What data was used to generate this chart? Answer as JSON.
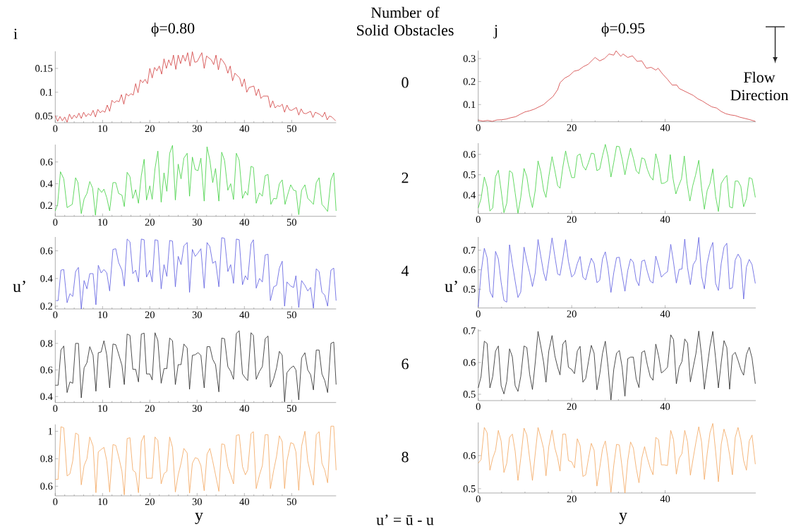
{
  "chart_data": [
    {
      "type": "line",
      "title": "ϕ=0.80",
      "annotations": [
        "i",
        "Number of Solid Obstacles",
        "0"
      ],
      "xlim": [
        0,
        59.4
      ],
      "xticks": [
        0,
        10,
        20,
        30,
        40,
        50
      ],
      "ylim": [
        0.036,
        0.186
      ],
      "yticks": [
        0.05,
        0.1,
        0.15
      ],
      "series": [
        {
          "color": "#d03a3a",
          "x": [
            0,
            0.5,
            1,
            1.5,
            2,
            2.5,
            3,
            3.5,
            4,
            4.5,
            5,
            5.5,
            6,
            6.5,
            7,
            7.5,
            8,
            8.5,
            9,
            9.5,
            10,
            10.5,
            11,
            11.5,
            12,
            12.5,
            13,
            13.5,
            14,
            14.5,
            15,
            15.5,
            16,
            16.5,
            17,
            17.5,
            18,
            18.5,
            19,
            19.5,
            20,
            20.5,
            21,
            21.5,
            22,
            22.5,
            23,
            23.5,
            24,
            24.5,
            25,
            25.5,
            26,
            26.5,
            27,
            27.5,
            28,
            28.5,
            29,
            29.5,
            30,
            31,
            31.5,
            32,
            33,
            33.5,
            34,
            34.5,
            35,
            35.5,
            36,
            36.5,
            37,
            37.5,
            38,
            39,
            39.5,
            40,
            40.5,
            41,
            42,
            42.5,
            43,
            43.5,
            44,
            45,
            45.5,
            46,
            46.5,
            47,
            47.5,
            48,
            48.5,
            49,
            49.5,
            50,
            51,
            51.5,
            52,
            52.5,
            53,
            54,
            54.5,
            55,
            56,
            56.5,
            57,
            57.5,
            58,
            58.5,
            59.3
          ],
          "values": [
            0.051,
            0.039,
            0.049,
            0.04,
            0.048,
            0.037,
            0.054,
            0.044,
            0.052,
            0.046,
            0.056,
            0.045,
            0.058,
            0.049,
            0.055,
            0.051,
            0.062,
            0.048,
            0.064,
            0.057,
            0.061,
            0.058,
            0.073,
            0.06,
            0.083,
            0.078,
            0.082,
            0.08,
            0.095,
            0.075,
            0.097,
            0.092,
            0.097,
            0.094,
            0.118,
            0.099,
            0.126,
            0.12,
            0.127,
            0.118,
            0.15,
            0.13,
            0.152,
            0.145,
            0.155,
            0.138,
            0.17,
            0.15,
            0.168,
            0.156,
            0.178,
            0.148,
            0.178,
            0.16,
            0.178,
            0.165,
            0.183,
            0.155,
            0.185,
            0.163,
            0.164,
            0.183,
            0.15,
            0.176,
            0.168,
            0.158,
            0.178,
            0.147,
            0.171,
            0.165,
            0.157,
            0.14,
            0.155,
            0.124,
            0.14,
            0.13,
            0.112,
            0.128,
            0.1,
            0.11,
            0.113,
            0.093,
            0.107,
            0.087,
            0.092,
            0.092,
            0.068,
            0.082,
            0.067,
            0.072,
            0.07,
            0.075,
            0.058,
            0.073,
            0.063,
            0.062,
            0.068,
            0.052,
            0.065,
            0.056,
            0.055,
            0.06,
            0.047,
            0.058,
            0.053,
            0.048,
            0.058,
            0.042,
            0.05,
            0.048,
            0.04
          ]
        }
      ]
    },
    {
      "type": "line",
      "title": "ϕ=0.95",
      "annotations": [
        "j",
        "Flow Direction"
      ],
      "xlim": [
        0,
        59.4
      ],
      "xticks": [
        0,
        20,
        40
      ],
      "ylim": [
        0.025,
        0.335
      ],
      "yticks": [
        0.1,
        0.2,
        0.3
      ],
      "series": [
        {
          "color": "#d03a3a",
          "x": [
            0,
            1,
            2,
            3,
            4,
            5,
            6,
            7,
            8,
            9,
            10,
            11,
            12,
            13,
            14,
            15,
            16,
            17,
            17.5,
            18.5,
            19.5,
            20.5,
            21.5,
            22.5,
            23.5,
            24.5,
            25,
            26,
            27,
            28,
            29,
            29.5,
            30.5,
            31,
            32,
            33,
            34,
            35,
            36,
            37,
            38,
            38.5,
            39.5,
            40.5,
            41.5,
            42.5,
            43,
            44,
            45,
            46,
            47,
            48,
            49,
            50,
            51,
            52,
            53,
            54,
            55,
            56,
            57,
            58,
            59.3
          ],
          "values": [
            0.032,
            0.028,
            0.031,
            0.027,
            0.033,
            0.034,
            0.037,
            0.043,
            0.047,
            0.058,
            0.068,
            0.073,
            0.08,
            0.09,
            0.1,
            0.118,
            0.135,
            0.165,
            0.195,
            0.215,
            0.226,
            0.245,
            0.25,
            0.265,
            0.275,
            0.295,
            0.305,
            0.29,
            0.3,
            0.32,
            0.315,
            0.334,
            0.31,
            0.32,
            0.305,
            0.312,
            0.288,
            0.29,
            0.258,
            0.262,
            0.25,
            0.258,
            0.232,
            0.21,
            0.185,
            0.185,
            0.17,
            0.16,
            0.15,
            0.14,
            0.125,
            0.115,
            0.102,
            0.09,
            0.085,
            0.07,
            0.06,
            0.055,
            0.052,
            0.045,
            0.04,
            0.035,
            0.027
          ]
        }
      ]
    },
    {
      "type": "line",
      "ylabel": "u’",
      "annotations": [
        "2"
      ],
      "xlim": [
        0,
        59.4
      ],
      "xticks": [
        0,
        10,
        20,
        30,
        40,
        50
      ],
      "ylim": [
        0.1,
        0.76
      ],
      "yticks": [
        0.2,
        0.4,
        0.6
      ],
      "series": [
        {
          "color": "#3ecf3e",
          "x": [
            0,
            0.5,
            1.1,
            1.8,
            2.5,
            3.6,
            4.3,
            4.8,
            5.5,
            6.1,
            6.7,
            7.3,
            7.9,
            8.5,
            9.1,
            9.8,
            10.3,
            10.9,
            11.5,
            12.2,
            12.8,
            13.4,
            14.1,
            14.6,
            15.2,
            15.8,
            16.4,
            17,
            17.6,
            18.2,
            18.8,
            19.3,
            20,
            20.5,
            21.1,
            21.7,
            22.4,
            23,
            23.6,
            24.2,
            24.8,
            25.4,
            26,
            26.6,
            27.2,
            27.9,
            28.4,
            29,
            29.6,
            30.2,
            30.8,
            31.5,
            32.1,
            32.7,
            33.3,
            33.9,
            34.6,
            35.2,
            35.8,
            36.5,
            37.1,
            37.7,
            38.3,
            38.9,
            39.6,
            40.2,
            40.7,
            41.4,
            41.9,
            42.5,
            43.2,
            43.8,
            44.4,
            45,
            45.6,
            46.2,
            46.8,
            47.4,
            48,
            48.6,
            49.3,
            49.8,
            50.4,
            50.9,
            51.5,
            52.1,
            52.8,
            53.4,
            54,
            54.6,
            55.2,
            55.8,
            56.4,
            57,
            57.6,
            58.3,
            58.9,
            59.4
          ],
          "values": [
            0.15,
            0.21,
            0.51,
            0.445,
            0.18,
            0.21,
            0.455,
            0.41,
            0.125,
            0.26,
            0.31,
            0.42,
            0.36,
            0.11,
            0.36,
            0.32,
            0.35,
            0.27,
            0.15,
            0.41,
            0.41,
            0.31,
            0.295,
            0.19,
            0.505,
            0.465,
            0.265,
            0.345,
            0.22,
            0.475,
            0.625,
            0.25,
            0.38,
            0.257,
            0.54,
            0.7,
            0.23,
            0.5,
            0.33,
            0.68,
            0.753,
            0.25,
            0.58,
            0.445,
            0.635,
            0.68,
            0.285,
            0.645,
            0.53,
            0.52,
            0.635,
            0.24,
            0.74,
            0.615,
            0.41,
            0.54,
            0.24,
            0.69,
            0.615,
            0.34,
            0.4,
            0.255,
            0.68,
            0.615,
            0.265,
            0.33,
            0.295,
            0.56,
            0.55,
            0.22,
            0.315,
            0.285,
            0.475,
            0.485,
            0.21,
            0.265,
            0.26,
            0.4,
            0.435,
            0.21,
            0.32,
            0.39,
            0.34,
            0.335,
            0.115,
            0.34,
            0.39,
            0.265,
            0.24,
            0.21,
            0.41,
            0.455,
            0.21,
            0.18,
            0.145,
            0.435,
            0.5,
            0.15
          ]
        }
      ]
    },
    {
      "type": "line",
      "ylabel": "u’",
      "xlim": [
        0,
        59.4
      ],
      "xticks": [
        0,
        20,
        40
      ],
      "ylim": [
        0.31,
        0.655
      ],
      "yticks": [
        0.4,
        0.5,
        0.6
      ],
      "series": [
        {
          "color": "#3ecf3e",
          "x": [
            0,
            0.6,
            1.3,
            1.9,
            2.5,
            3.1,
            3.7,
            4.3,
            4.9,
            5.5,
            6.1,
            6.7,
            7.3,
            7.9,
            8.5,
            9.1,
            9.8,
            10.4,
            11,
            11.6,
            12.2,
            12.8,
            13.4,
            14,
            14.5,
            15.1,
            15.8,
            16.4,
            17,
            17.5,
            18.1,
            18.7,
            19.3,
            20,
            20.6,
            21.2,
            21.8,
            22.4,
            23,
            23.6,
            24.2,
            24.8,
            25.4,
            26,
            26.6,
            27.2,
            27.8,
            28.4,
            29,
            29.6,
            30.2,
            30.8,
            31.4,
            32,
            32.6,
            33.2,
            33.8,
            34.4,
            35,
            35.6,
            36.2,
            36.8,
            37.4,
            38,
            38.6,
            39.2,
            39.8,
            40.5,
            41.1,
            41.7,
            42.3,
            42.9,
            43.5,
            44.1,
            44.7,
            45.3,
            45.9,
            46.5,
            47.2,
            47.8,
            48.4,
            49,
            49.6,
            50.2,
            50.8,
            51.4,
            52,
            52.6,
            53.2,
            53.8,
            54.4,
            55,
            55.6,
            56.2,
            56.8,
            57.4,
            58,
            58.6,
            59.3
          ],
          "values": [
            0.337,
            0.383,
            0.489,
            0.44,
            0.322,
            0.337,
            0.491,
            0.522,
            0.423,
            0.314,
            0.36,
            0.52,
            0.509,
            0.411,
            0.311,
            0.389,
            0.531,
            0.491,
            0.4,
            0.339,
            0.423,
            0.568,
            0.514,
            0.423,
            0.389,
            0.491,
            0.589,
            0.52,
            0.446,
            0.434,
            0.537,
            0.617,
            0.549,
            0.486,
            0.486,
            0.594,
            0.602,
            0.543,
            0.523,
            0.56,
            0.606,
            0.603,
            0.52,
            0.528,
            0.594,
            0.649,
            0.589,
            0.489,
            0.56,
            0.64,
            0.638,
            0.577,
            0.5,
            0.571,
            0.631,
            0.581,
            0.52,
            0.505,
            0.583,
            0.577,
            0.526,
            0.491,
            0.474,
            0.603,
            0.549,
            0.457,
            0.459,
            0.469,
            0.599,
            0.48,
            0.406,
            0.446,
            0.48,
            0.592,
            0.457,
            0.371,
            0.446,
            0.497,
            0.571,
            0.434,
            0.331,
            0.423,
            0.457,
            0.529,
            0.394,
            0.32,
            0.457,
            0.48,
            0.497,
            0.343,
            0.337,
            0.469,
            0.469,
            0.443,
            0.343,
            0.383,
            0.486,
            0.48,
            0.389
          ]
        }
      ]
    },
    {
      "type": "line",
      "annotations": [
        "4"
      ],
      "xlim": [
        0,
        59.4
      ],
      "xticks": [
        0,
        10,
        20,
        30,
        40,
        50
      ],
      "ylim": [
        0.18,
        0.7
      ],
      "yticks": [
        0.2,
        0.4,
        0.6
      ],
      "series": [
        {
          "color": "#5a5ae0",
          "x": [
            0.15,
            0.6,
            1.2,
            1.8,
            2.5,
            3.1,
            3.7,
            4.3,
            4.9,
            5.5,
            6.1,
            6.7,
            7.3,
            8,
            8.6,
            9.1,
            9.7,
            10.3,
            10.9,
            11.5,
            12.2,
            12.8,
            13.4,
            14.1,
            14.6,
            15.2,
            15.8,
            16.4,
            17,
            17.6,
            18.2,
            18.8,
            19.3,
            20,
            20.5,
            21.1,
            21.7,
            22.4,
            23,
            23.6,
            24.2,
            24.8,
            25.4,
            26,
            26.6,
            27.2,
            27.9,
            28.4,
            29,
            29.6,
            30.2,
            30.8,
            31.5,
            32.1,
            32.7,
            33.3,
            33.9,
            34.6,
            35.2,
            35.8,
            36.5,
            37.1,
            37.7,
            38.3,
            38.9,
            39.6,
            40.2,
            40.7,
            41.4,
            41.9,
            42.5,
            43.2,
            43.8,
            44.4,
            45,
            45.5,
            46.2,
            46.8,
            47.4,
            48,
            48.5,
            49,
            49.8,
            50.4,
            50.9,
            51.5,
            52.1,
            52.8,
            53.4,
            54,
            54.6,
            55.2,
            55.8,
            56.4,
            57,
            57.6,
            58.3,
            58.9,
            59.4
          ],
          "values": [
            0.24,
            0.24,
            0.46,
            0.465,
            0.225,
            0.29,
            0.27,
            0.45,
            0.48,
            0.18,
            0.385,
            0.325,
            0.435,
            0.435,
            0.21,
            0.495,
            0.44,
            0.465,
            0.44,
            0.31,
            0.61,
            0.615,
            0.515,
            0.46,
            0.345,
            0.685,
            0.665,
            0.435,
            0.46,
            0.375,
            0.685,
            0.68,
            0.41,
            0.46,
            0.375,
            0.68,
            0.675,
            0.325,
            0.5,
            0.415,
            0.675,
            0.67,
            0.34,
            0.56,
            0.5,
            0.635,
            0.66,
            0.3,
            0.61,
            0.56,
            0.585,
            0.615,
            0.33,
            0.66,
            0.63,
            0.51,
            0.525,
            0.34,
            0.695,
            0.69,
            0.45,
            0.5,
            0.365,
            0.685,
            0.68,
            0.355,
            0.42,
            0.39,
            0.65,
            0.68,
            0.33,
            0.4,
            0.375,
            0.57,
            0.575,
            0.24,
            0.34,
            0.35,
            0.475,
            0.525,
            0.2,
            0.375,
            0.345,
            0.335,
            0.42,
            0.19,
            0.385,
            0.35,
            0.31,
            0.335,
            0.185,
            0.47,
            0.45,
            0.3,
            0.28,
            0.2,
            0.46,
            0.475,
            0.24
          ]
        }
      ]
    },
    {
      "type": "line",
      "xlim": [
        0,
        59.4
      ],
      "xticks": [
        0,
        20,
        40
      ],
      "ylim": [
        0.404,
        0.768
      ],
      "yticks": [
        0.5,
        0.6,
        0.7
      ],
      "series": [
        {
          "color": "#5a5ae0",
          "x": [
            0,
            0.6,
            1.3,
            1.9,
            2.5,
            3.1,
            3.7,
            4.3,
            4.9,
            5.5,
            6.1,
            6.7,
            7.3,
            7.9,
            8.5,
            9.1,
            9.8,
            10.4,
            11,
            11.6,
            12.2,
            12.8,
            13.4,
            14,
            14.5,
            15.1,
            15.8,
            16.4,
            17,
            17.5,
            18.1,
            18.7,
            19.3,
            20,
            20.6,
            21.2,
            21.8,
            22.4,
            23,
            23.6,
            24.2,
            24.8,
            25.4,
            26,
            26.6,
            27.2,
            27.8,
            28.4,
            29,
            29.6,
            30.2,
            30.8,
            31.4,
            32,
            32.6,
            33.2,
            33.8,
            34.4,
            35,
            35.6,
            36.2,
            36.8,
            37.4,
            38,
            38.6,
            39.2,
            39.8,
            40.5,
            41.2,
            41.8,
            42.4,
            43,
            43.6,
            44.2,
            44.8,
            45.4,
            46,
            46.6,
            47.2,
            47.8,
            48.4,
            49,
            49.6,
            50.2,
            50.8,
            51.4,
            52,
            52.6,
            53.2,
            53.8,
            54.4,
            55,
            55.6,
            56.2,
            56.8,
            57.4,
            58,
            58.6,
            59.3
          ],
          "values": [
            0.41,
            0.584,
            0.71,
            0.662,
            0.49,
            0.458,
            0.694,
            0.656,
            0.536,
            0.443,
            0.434,
            0.728,
            0.632,
            0.542,
            0.458,
            0.486,
            0.716,
            0.644,
            0.584,
            0.514,
            0.584,
            0.755,
            0.668,
            0.584,
            0.544,
            0.644,
            0.763,
            0.668,
            0.578,
            0.572,
            0.656,
            0.754,
            0.644,
            0.563,
            0.578,
            0.632,
            0.668,
            0.562,
            0.548,
            0.608,
            0.659,
            0.632,
            0.534,
            0.546,
            0.656,
            0.692,
            0.608,
            0.484,
            0.584,
            0.662,
            0.664,
            0.572,
            0.49,
            0.596,
            0.656,
            0.638,
            0.548,
            0.518,
            0.644,
            0.65,
            0.59,
            0.542,
            0.532,
            0.67,
            0.62,
            0.562,
            0.578,
            0.59,
            0.73,
            0.638,
            0.532,
            0.602,
            0.604,
            0.757,
            0.61,
            0.524,
            0.626,
            0.65,
            0.766,
            0.566,
            0.502,
            0.632,
            0.7,
            0.74,
            0.53,
            0.494,
            0.632,
            0.716,
            0.736,
            0.502,
            0.508,
            0.65,
            0.68,
            0.656,
            0.45,
            0.614,
            0.653,
            0.626,
            0.53
          ]
        }
      ]
    },
    {
      "type": "line",
      "annotations": [
        "6"
      ],
      "xlim": [
        0,
        59.4
      ],
      "xticks": [
        0,
        10,
        20,
        30,
        40,
        50
      ],
      "ylim": [
        0.355,
        0.9
      ],
      "yticks": [
        0.4,
        0.6,
        0.8
      ],
      "series": [
        {
          "color": "#222222",
          "x": [
            0,
            0.6,
            1.2,
            1.8,
            2.5,
            3.1,
            3.7,
            4.3,
            4.9,
            5.5,
            6.1,
            6.7,
            7.3,
            8,
            8.6,
            9.1,
            9.7,
            10.3,
            10.9,
            11.5,
            12.2,
            12.8,
            13.4,
            14.1,
            14.6,
            15.2,
            15.8,
            16.4,
            17,
            17.6,
            18.2,
            18.8,
            19.3,
            20,
            20.5,
            21.1,
            21.7,
            22.4,
            23,
            23.6,
            24.2,
            24.8,
            25.4,
            26,
            26.6,
            27.2,
            27.9,
            28.4,
            29,
            29.6,
            30.2,
            30.8,
            31.5,
            32.1,
            32.7,
            33.3,
            33.9,
            34.6,
            35.2,
            35.8,
            36.5,
            37.1,
            37.7,
            38.3,
            38.9,
            39.6,
            40.2,
            40.7,
            41.4,
            41.9,
            42.5,
            43.2,
            43.8,
            44.4,
            45,
            45.5,
            46.2,
            46.8,
            47.4,
            48,
            48.5,
            49,
            49.8,
            50.4,
            50.9,
            51.5,
            52.1,
            52.8,
            53.4,
            54,
            54.6,
            55.2,
            55.8,
            56.4,
            57,
            57.6,
            58.3,
            58.9,
            59.4
          ],
          "values": [
            0.485,
            0.485,
            0.75,
            0.78,
            0.43,
            0.51,
            0.5,
            0.8,
            0.8,
            0.39,
            0.615,
            0.655,
            0.775,
            0.71,
            0.44,
            0.73,
            0.735,
            0.82,
            0.71,
            0.465,
            0.795,
            0.79,
            0.72,
            0.635,
            0.49,
            0.87,
            0.86,
            0.605,
            0.605,
            0.51,
            0.87,
            0.877,
            0.57,
            0.57,
            0.525,
            0.88,
            0.82,
            0.5,
            0.61,
            0.61,
            0.84,
            0.82,
            0.49,
            0.64,
            0.64,
            0.795,
            0.765,
            0.455,
            0.71,
            0.715,
            0.73,
            0.71,
            0.465,
            0.775,
            0.775,
            0.68,
            0.64,
            0.435,
            0.84,
            0.835,
            0.625,
            0.59,
            0.53,
            0.875,
            0.895,
            0.57,
            0.54,
            0.52,
            0.88,
            0.86,
            0.53,
            0.59,
            0.625,
            0.835,
            0.855,
            0.47,
            0.535,
            0.615,
            0.74,
            0.71,
            0.36,
            0.58,
            0.615,
            0.63,
            0.6,
            0.375,
            0.69,
            0.73,
            0.6,
            0.565,
            0.45,
            0.75,
            0.75,
            0.57,
            0.52,
            0.43,
            0.8,
            0.81,
            0.49
          ]
        }
      ]
    },
    {
      "type": "line",
      "xlim": [
        0,
        59.4
      ],
      "xticks": [
        0,
        20,
        40
      ],
      "ylim": [
        0.48,
        0.705
      ],
      "yticks": [
        0.5,
        0.6,
        0.7
      ],
      "series": [
        {
          "color": "#222222",
          "x": [
            0,
            0.6,
            1.3,
            1.9,
            2.5,
            3.1,
            3.7,
            4.3,
            4.9,
            5.5,
            6.1,
            6.7,
            7.3,
            7.9,
            8.5,
            9.1,
            9.8,
            10.4,
            11,
            11.6,
            12.2,
            12.8,
            13.4,
            14,
            14.5,
            15.1,
            15.8,
            16.4,
            17,
            17.5,
            18.1,
            18.7,
            19.3,
            20,
            20.6,
            21.2,
            21.8,
            22.4,
            23,
            23.6,
            24.2,
            24.8,
            25.4,
            26,
            26.6,
            27.2,
            27.8,
            28.4,
            29,
            29.6,
            30.2,
            30.8,
            31.4,
            32,
            32.6,
            33.2,
            33.8,
            34.4,
            35,
            35.6,
            36.2,
            36.8,
            37.4,
            38,
            38.6,
            39.2,
            39.8,
            40.5,
            41.2,
            41.8,
            42.4,
            43,
            43.6,
            44.2,
            44.8,
            45.4,
            46,
            46.6,
            47.2,
            47.8,
            48.4,
            49,
            49.6,
            50.2,
            50.8,
            51.4,
            52,
            52.6,
            53.2,
            53.8,
            54.4,
            55,
            55.6,
            56.2,
            56.8,
            57.4,
            58,
            58.6,
            59.3
          ],
          "values": [
            0.52,
            0.556,
            0.667,
            0.66,
            0.52,
            0.556,
            0.636,
            0.652,
            0.527,
            0.501,
            0.541,
            0.643,
            0.618,
            0.527,
            0.509,
            0.556,
            0.652,
            0.647,
            0.563,
            0.515,
            0.6,
            0.698,
            0.651,
            0.6,
            0.538,
            0.636,
            0.685,
            0.621,
            0.585,
            0.561,
            0.658,
            0.67,
            0.585,
            0.578,
            0.565,
            0.636,
            0.651,
            0.538,
            0.55,
            0.604,
            0.654,
            0.629,
            0.514,
            0.563,
            0.629,
            0.667,
            0.585,
            0.482,
            0.578,
            0.629,
            0.638,
            0.585,
            0.494,
            0.612,
            0.617,
            0.617,
            0.549,
            0.521,
            0.632,
            0.637,
            0.592,
            0.556,
            0.544,
            0.658,
            0.621,
            0.567,
            0.574,
            0.585,
            0.687,
            0.672,
            0.533,
            0.585,
            0.603,
            0.674,
            0.661,
            0.539,
            0.585,
            0.629,
            0.699,
            0.621,
            0.516,
            0.585,
            0.651,
            0.698,
            0.614,
            0.52,
            0.6,
            0.669,
            0.647,
            0.516,
            0.623,
            0.632,
            0.607,
            0.578,
            0.56,
            0.625,
            0.648,
            0.614,
            0.533
          ]
        }
      ]
    },
    {
      "type": "line",
      "xlabel": "y",
      "annotations": [
        "8",
        "u’ = ū - u"
      ],
      "xlim": [
        0,
        59.4
      ],
      "xticks": [
        0,
        10,
        20,
        30,
        40,
        50
      ],
      "ylim": [
        0.53,
        1.05
      ],
      "yticks": [
        0.6,
        0.8,
        1
      ],
      "series": [
        {
          "color": "#f2a55c",
          "x": [
            0,
            0.6,
            1.2,
            1.8,
            2.5,
            3.1,
            3.7,
            4.3,
            4.9,
            5.5,
            6.1,
            6.7,
            7.3,
            8,
            8.6,
            9.1,
            9.7,
            10.3,
            10.9,
            11.5,
            12.2,
            12.8,
            13.4,
            14.1,
            14.6,
            15.2,
            15.8,
            16.4,
            17,
            17.6,
            18.2,
            18.8,
            19.3,
            20,
            20.5,
            21.1,
            21.7,
            22.4,
            23,
            23.6,
            24.2,
            24.8,
            25.4,
            26,
            26.6,
            27.2,
            27.9,
            28.4,
            29,
            29.6,
            30.2,
            30.8,
            31.5,
            32.1,
            32.7,
            33.3,
            33.9,
            34.6,
            35.2,
            35.8,
            36.5,
            37.1,
            37.7,
            38.3,
            38.9,
            39.6,
            40.2,
            40.7,
            41.4,
            41.9,
            42.5,
            43.2,
            43.8,
            44.4,
            45,
            45.5,
            46.2,
            46.8,
            47.4,
            48,
            48.5,
            49,
            49.8,
            50.4,
            50.9,
            51.5,
            52.1,
            52.8,
            53.4,
            54,
            54.6,
            55.2,
            55.8,
            56.4,
            57,
            57.6,
            58.3,
            58.9,
            59.4
          ],
          "values": [
            0.65,
            0.65,
            1.033,
            1.025,
            0.675,
            0.69,
            0.785,
            0.987,
            0.975,
            0.61,
            0.75,
            0.8,
            0.958,
            0.892,
            0.553,
            0.85,
            0.867,
            0.883,
            0.783,
            0.558,
            0.903,
            0.897,
            0.817,
            0.708,
            0.537,
            0.947,
            0.953,
            0.717,
            0.7,
            0.553,
            0.925,
            0.97,
            0.658,
            0.658,
            0.658,
            0.958,
            0.933,
            0.617,
            0.692,
            0.708,
            0.958,
            0.883,
            0.558,
            0.683,
            0.767,
            0.875,
            0.842,
            0.55,
            0.767,
            0.808,
            0.8,
            0.75,
            0.567,
            0.833,
            0.875,
            0.783,
            0.683,
            0.563,
            0.908,
            0.903,
            0.742,
            0.683,
            0.617,
            0.97,
            0.975,
            0.742,
            0.683,
            0.717,
            0.983,
            0.997,
            0.583,
            0.683,
            0.75,
            0.975,
            0.975,
            0.583,
            0.717,
            0.817,
            0.967,
            0.925,
            0.583,
            0.783,
            0.917,
            0.908,
            0.85,
            0.57,
            0.892,
            1.0,
            0.783,
            0.692,
            0.608,
            0.975,
            0.997,
            0.767,
            0.717,
            0.625,
            1.037,
            1.037,
            0.717
          ]
        }
      ]
    },
    {
      "type": "line",
      "xlabel": "y",
      "xlim": [
        0,
        59.4
      ],
      "xticks": [
        0,
        20,
        40
      ],
      "ylim": [
        0.487,
        0.7
      ],
      "yticks": [
        0.5,
        0.6
      ],
      "series": [
        {
          "color": "#f2a55c",
          "x": [
            0,
            0.6,
            1.3,
            1.9,
            2.5,
            3.1,
            3.7,
            4.3,
            4.9,
            5.5,
            6.1,
            6.7,
            7.3,
            7.9,
            8.5,
            9.1,
            9.8,
            10.4,
            11,
            11.6,
            12.2,
            12.8,
            13.4,
            14,
            14.5,
            15.1,
            15.8,
            16.4,
            17,
            17.5,
            18.1,
            18.7,
            19.3,
            20,
            20.6,
            21.2,
            21.8,
            22.4,
            23,
            23.6,
            24.2,
            24.8,
            25.4,
            26,
            26.6,
            27.2,
            27.8,
            28.4,
            29,
            29.6,
            30.2,
            30.8,
            31.4,
            32,
            32.6,
            33.2,
            33.8,
            34.4,
            35,
            35.6,
            36.2,
            36.8,
            37.4,
            38,
            38.6,
            39.2,
            39.8,
            40.5,
            41.2,
            41.8,
            42.4,
            43,
            43.6,
            44.2,
            44.8,
            45.4,
            46,
            46.6,
            47.2,
            47.8,
            48.4,
            49,
            49.6,
            50.2,
            50.8,
            51.4,
            52,
            52.6,
            53.2,
            53.8,
            54.4,
            55,
            55.6,
            56.2,
            56.8,
            57.4,
            58,
            58.6,
            59.3
          ],
          "values": [
            0.577,
            0.588,
            0.685,
            0.669,
            0.556,
            0.592,
            0.616,
            0.676,
            0.644,
            0.549,
            0.577,
            0.655,
            0.665,
            0.613,
            0.525,
            0.592,
            0.683,
            0.662,
            0.592,
            0.525,
            0.606,
            0.685,
            0.655,
            0.62,
            0.539,
            0.627,
            0.677,
            0.623,
            0.592,
            0.553,
            0.665,
            0.665,
            0.585,
            0.581,
            0.563,
            0.651,
            0.63,
            0.537,
            0.542,
            0.592,
            0.637,
            0.616,
            0.508,
            0.563,
            0.62,
            0.644,
            0.585,
            0.489,
            0.57,
            0.634,
            0.632,
            0.563,
            0.487,
            0.585,
            0.641,
            0.623,
            0.563,
            0.518,
            0.592,
            0.627,
            0.592,
            0.563,
            0.542,
            0.655,
            0.648,
            0.572,
            0.572,
            0.57,
            0.676,
            0.648,
            0.544,
            0.592,
            0.606,
            0.676,
            0.641,
            0.541,
            0.592,
            0.641,
            0.687,
            0.641,
            0.528,
            0.606,
            0.669,
            0.697,
            0.613,
            0.521,
            0.634,
            0.68,
            0.651,
            0.602,
            0.542,
            0.655,
            0.685,
            0.648,
            0.585,
            0.556,
            0.644,
            0.662,
            0.574
          ]
        }
      ]
    }
  ]
}
